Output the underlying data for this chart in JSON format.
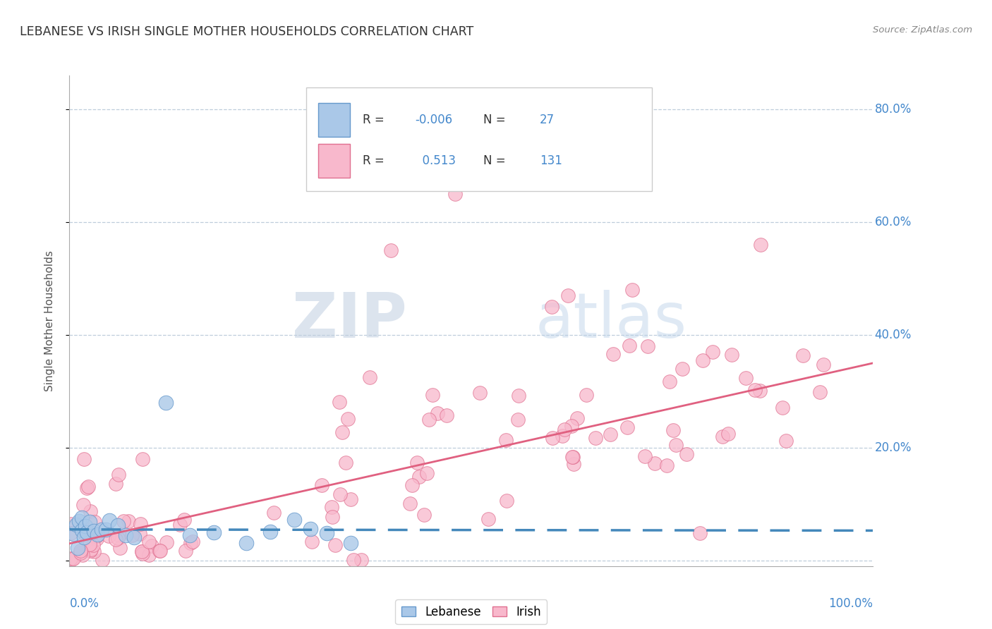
{
  "title": "LEBANESE VS IRISH SINGLE MOTHER HOUSEHOLDS CORRELATION CHART",
  "source": "Source: ZipAtlas.com",
  "ylabel": "Single Mother Households",
  "legend_labels": [
    "Lebanese",
    "Irish"
  ],
  "R_lebanese": -0.006,
  "N_lebanese": 27,
  "R_irish": 0.513,
  "N_irish": 131,
  "xlim": [
    0.0,
    1.0
  ],
  "ylim": [
    -0.01,
    0.86
  ],
  "ytick_vals": [
    0.0,
    0.2,
    0.4,
    0.6,
    0.8
  ],
  "ytick_labels": [
    "",
    "20.0%",
    "40.0%",
    "60.0%",
    "80.0%"
  ],
  "watermark_zip": "ZIP",
  "watermark_atlas": "atlas",
  "color_leb_face": "#aac8e8",
  "color_leb_edge": "#6699cc",
  "color_irish_face": "#f8b8cc",
  "color_irish_edge": "#e07090",
  "color_leb_line": "#4488bb",
  "color_irish_line": "#e06080",
  "color_blue_text": "#4488cc",
  "background": "#ffffff",
  "grid_color": "#b8c8d8",
  "title_color": "#333333",
  "source_color": "#888888",
  "axis_label_color": "#555555"
}
